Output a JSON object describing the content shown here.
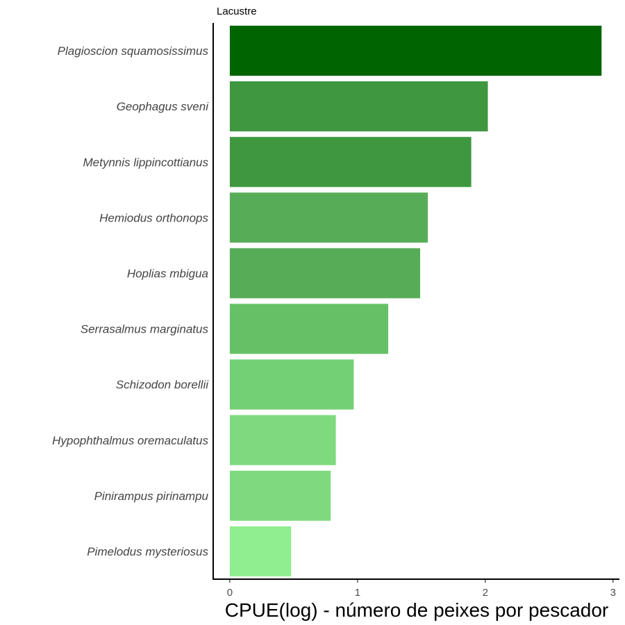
{
  "chart_data": {
    "type": "bar",
    "orientation": "horizontal",
    "facet_title": "Lacustre",
    "categories": [
      "Plagioscion squamosissimus",
      "Geophagus sveni",
      "Metynnis lippincottianus",
      "Hemiodus orthonops",
      "Hoplias mbigua",
      "Serrasalmus marginatus",
      "Schizodon borellii",
      "Hypophthalmus oremaculatus",
      "Pinirampus pirinampu",
      "Pimelodus mysteriosus"
    ],
    "values": [
      2.91,
      2.02,
      1.89,
      1.55,
      1.49,
      1.24,
      0.97,
      0.83,
      0.79,
      0.48
    ],
    "colors": [
      "#006400",
      "#3f973f",
      "#3f973f",
      "#57ad57",
      "#57ad57",
      "#66c166",
      "#74d074",
      "#7fda7f",
      "#7fda7f",
      "#90ee90"
    ],
    "xlabel": "CPUE(log) - número de peixes por pescador",
    "ylabel": "",
    "xlim": [
      -0.13,
      3.05
    ],
    "xticks": [
      0,
      1,
      2,
      3
    ],
    "xtick_labels": [
      "0",
      "1",
      "2",
      "3"
    ],
    "grid": false,
    "legend": "none"
  }
}
